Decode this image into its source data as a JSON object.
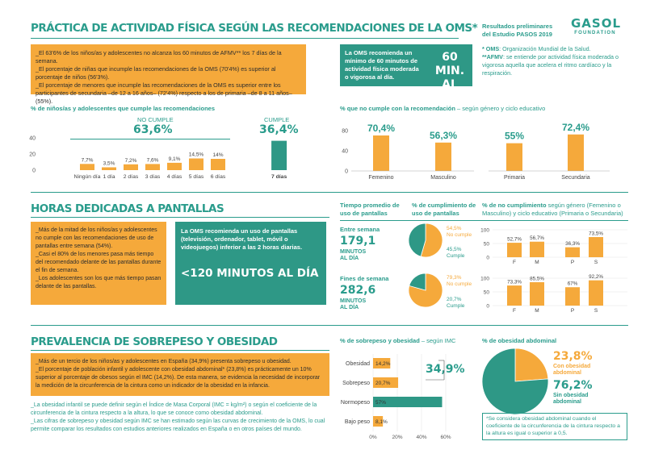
{
  "header": {
    "title": "PRÁCTICA DE ACTIVIDAD FÍSICA SEGÚN LAS RECOMENDACIONES DE LA OMS*",
    "source_line1": "Resultados preliminares",
    "source_line2": "del Estudio PASOS 2019",
    "logo_text": "GASOL",
    "logo_sub": "FOUNDATION"
  },
  "section1": {
    "bullets": [
      "_El 63'6% de los niños/as y adolescentes no alcanza los 60 minutos de AFMV** los 7 días de la semana.",
      "_El porcentaje de niñas que incumple las recomendaciones de la OMS (70'4%) es superior al porcentaje de niños (56'3%).",
      "_El porcentaje de menores que incumple las recomendaciones de la OMS es superior entre los participantes de secundaria –de 12 a 16 años– (72'4%) respecto a los de primaria –de 8 a 11 años– (55%)."
    ],
    "oms_text": "La OMS recomienda un mínimo de 60 minutos de actividad física moderada o vigorosa al día.",
    "oms_big_line1": "60 MIN.",
    "oms_big_line2": "AL DÍA",
    "note1_key": "* OMS",
    "note1_val": ": Organización Mundial de la Salud.",
    "note2_key": "**AFMV",
    "note2_val": ": se entiende por actividad física moderada o vigorosa aquella que acelera el ritmo cardíaco y la respiración.",
    "chart1_title": "% de niños/as y adolescentes que cumple las recomendaciones",
    "no_cumple_label": "NO CUMPLE",
    "no_cumple_value": "63,6%",
    "cumple_label": "CUMPLE",
    "cumple_value": "36,4%",
    "chart2_title_bold": "% que no cumple con la recomendación",
    "chart2_title_rest": " – según género y ciclo educativo"
  },
  "section2": {
    "title": "HORAS DEDICADAS A PANTALLAS",
    "bullets": [
      "_Más de la mitad de los niños/as y adolescentes no cumple con las recomendaciones de uso de pantallas entre semana (54%).",
      "_Casi el 80% de los menores pasa más tiempo del recomendado delante de las pantallas durante el fin de semana.",
      "_Los adolescentes son los que más tiempo pasan delante de las pantallas."
    ],
    "oms_text": "La OMS recomienda un uso de pantallas (televisión, ordenador, tablet, móvil o videojuegos) inferior a las 2 horas diarias.",
    "oms_big": "<120 MINUTOS AL DÍA",
    "col1_title": "Tiempo promedio de uso de pantallas",
    "col2_title": "% de cumplimiento de uso de pantallas",
    "col3_title_bold": "% de no cumplimiento",
    "col3_title_rest": " según género (Femenino o Masculino) y ciclo educativo (Primaria o Secundaria)",
    "weekday_label": "Entre semana",
    "weekday_value": "179,1",
    "weekday_unit": "MINUTOS AL DÍA",
    "weekend_label": "Fines de semana",
    "weekend_value": "282,6",
    "weekend_unit": "MINUTOS AL DÍA",
    "pie1_no": "54,5%",
    "pie1_no_label": "No cumple",
    "pie1_si": "45,5%",
    "pie1_si_label": "Cumple",
    "pie2_no": "79,3%",
    "pie2_no_label": "No cumple",
    "pie2_si": "20,7%",
    "pie2_si_label": "Cumple"
  },
  "section3": {
    "title": "PREVALENCIA DE SOBREPESO Y OBESIDAD",
    "bullets": [
      "_Más de un tercio de los niños/as y adolescentes en España (34,9%) presenta sobrepeso u obesidad.",
      "_El porcentaje de población infantil y adolescente con obesidad abdominal* (23,8%) es prácticamente un 10% superior al porcentaje de obesos según el IMC (14,2%). De esta manera, se evidencia la necesidad de incorporar la medición de la circunferencia de la cintura como un indicador de la obesidad en la infancia."
    ],
    "notes": [
      "_La obesidad infantil se puede definir según el Índice de Masa Corporal (IMC = kg/m²) o según el coeficiente de la circunferencia de la cintura respecto a la altura, lo que se conoce como obesidad abdominal.",
      "_Las cifras de sobrepeso y obesidad según IMC se han estimado según las curvas de crecimiento de la OMS, lo cual permite comparar los resultados con estudios anteriores realizados en España o en otros países del mundo."
    ],
    "imc_title_bold": "% de sobrepeso y obesidad",
    "imc_title_rest": " – según IMC",
    "imc_total": "34,9%",
    "abd_title": "% de obesidad abdominal",
    "abd_yes_value": "23,8%",
    "abd_yes_label": "Con obesidad abdominal",
    "abd_no_value": "76,2%",
    "abd_no_label": "Sin obesidad abdominal",
    "abd_note": "*Se considera obesidad abdominal cuando el coeficiente de la circunferencia de la cintura respecto a la altura es igual o superior a 0,5."
  },
  "colors": {
    "teal": "#2e9886",
    "orange": "#f5a93b",
    "title_teal": "#2a9c8c"
  },
  "chart_data": [
    {
      "type": "bar",
      "id": "dias",
      "title": "% de niños/as y adolescentes que cumple las recomendaciones",
      "categories": [
        "Ningún día",
        "1 día",
        "2 días",
        "3 días",
        "4 días",
        "5 días",
        "6 días",
        "7 días"
      ],
      "values": [
        7.7,
        3.5,
        7.2,
        7.6,
        9.1,
        14.5,
        14,
        36.4
      ],
      "labels": [
        "7,7%",
        "3,5%",
        "7,2%",
        "7,6%",
        "9,1%",
        "14,5%",
        "14%",
        ""
      ],
      "yticks": [
        0,
        20,
        40
      ],
      "ylim": [
        0,
        40
      ]
    },
    {
      "type": "bar",
      "id": "genero_ciclo",
      "title": "% que no cumple con la recomendación",
      "categories": [
        "Femenino",
        "Masculino",
        "Primaria",
        "Secundaria"
      ],
      "values": [
        70.4,
        56.3,
        55,
        72.4
      ],
      "labels": [
        "70,4%",
        "56,3%",
        "55%",
        "72,4%"
      ],
      "yticks": [
        0,
        40,
        80
      ],
      "ylim": [
        0,
        80
      ]
    },
    {
      "type": "pie",
      "id": "pantallas_semana",
      "slices": [
        {
          "name": "No cumple",
          "value": 54.5
        },
        {
          "name": "Cumple",
          "value": 45.5
        }
      ]
    },
    {
      "type": "pie",
      "id": "pantallas_finde",
      "slices": [
        {
          "name": "No cumple",
          "value": 79.3
        },
        {
          "name": "Cumple",
          "value": 20.7
        }
      ]
    },
    {
      "type": "bar",
      "id": "pantallas_semana_bars",
      "categories": [
        "F",
        "M",
        "P",
        "S"
      ],
      "values": [
        52.7,
        56.7,
        36.3,
        73.5
      ],
      "labels": [
        "52,7%",
        "56,7%",
        "36,3%",
        "73,5%"
      ],
      "yticks": [
        0,
        50,
        100
      ],
      "ylim": [
        0,
        100
      ]
    },
    {
      "type": "bar",
      "id": "pantallas_finde_bars",
      "categories": [
        "F",
        "M",
        "P",
        "S"
      ],
      "values": [
        73.3,
        85.5,
        67,
        92.2
      ],
      "labels": [
        "73,3%",
        "85,5%",
        "67%",
        "92,2%"
      ],
      "yticks": [
        0,
        50,
        100
      ],
      "ylim": [
        0,
        100
      ]
    },
    {
      "type": "bar",
      "id": "imc",
      "orientation": "horizontal",
      "categories": [
        "Obesidad",
        "Sobrepeso",
        "Normopeso",
        "Bajo peso"
      ],
      "values": [
        14.2,
        20.7,
        57,
        8.1
      ],
      "labels": [
        "14,2%",
        "20,7%",
        "57%",
        "8,1%"
      ],
      "xticks": [
        "0%",
        "20%",
        "40%",
        "60%"
      ],
      "xlim": [
        0,
        60
      ]
    },
    {
      "type": "pie",
      "id": "abdominal",
      "slices": [
        {
          "name": "Con obesidad abdominal",
          "value": 23.8
        },
        {
          "name": "Sin obesidad abdominal",
          "value": 76.2
        }
      ]
    }
  ]
}
